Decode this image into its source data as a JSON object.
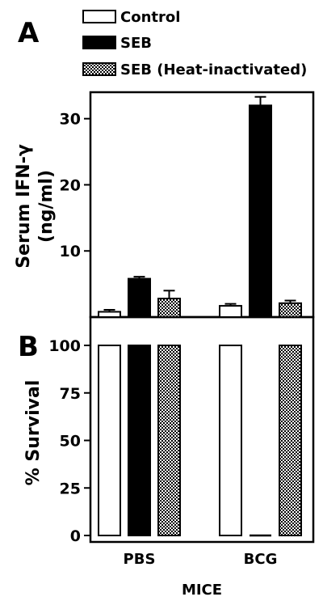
{
  "legend": {
    "items": [
      {
        "label": "Control",
        "fill": "white"
      },
      {
        "label": "SEB",
        "fill": "black"
      },
      {
        "label": "SEB (Heat-inactivated)",
        "fill": "checker"
      }
    ]
  },
  "chart_data": [
    {
      "panel": "A",
      "type": "bar",
      "ylabel_line1": "Serum IFN-γ",
      "ylabel_line2": "(ng/ml)",
      "categories": [
        "PBS",
        "BCG"
      ],
      "yticks": [
        10,
        20,
        30
      ],
      "ylim": [
        0,
        34
      ],
      "series": [
        {
          "name": "Control",
          "values": [
            0.8,
            1.7
          ],
          "errors": [
            0.3,
            0.3
          ]
        },
        {
          "name": "SEB",
          "values": [
            5.8,
            32.0
          ],
          "errors": [
            0.3,
            1.3
          ]
        },
        {
          "name": "SEB (Heat-inactivated)",
          "values": [
            2.8,
            2.1
          ],
          "errors": [
            1.2,
            0.4
          ]
        }
      ]
    },
    {
      "panel": "B",
      "type": "bar",
      "ylabel": "% Survival",
      "xlabel": "MICE",
      "categories": [
        "PBS",
        "BCG"
      ],
      "yticks": [
        0,
        25,
        50,
        75,
        100
      ],
      "ylim": [
        0,
        110
      ],
      "series": [
        {
          "name": "Control",
          "values": [
            100,
            100
          ]
        },
        {
          "name": "SEB",
          "values": [
            100,
            0
          ]
        },
        {
          "name": "SEB (Heat-inactivated)",
          "values": [
            100,
            100
          ]
        }
      ]
    }
  ]
}
